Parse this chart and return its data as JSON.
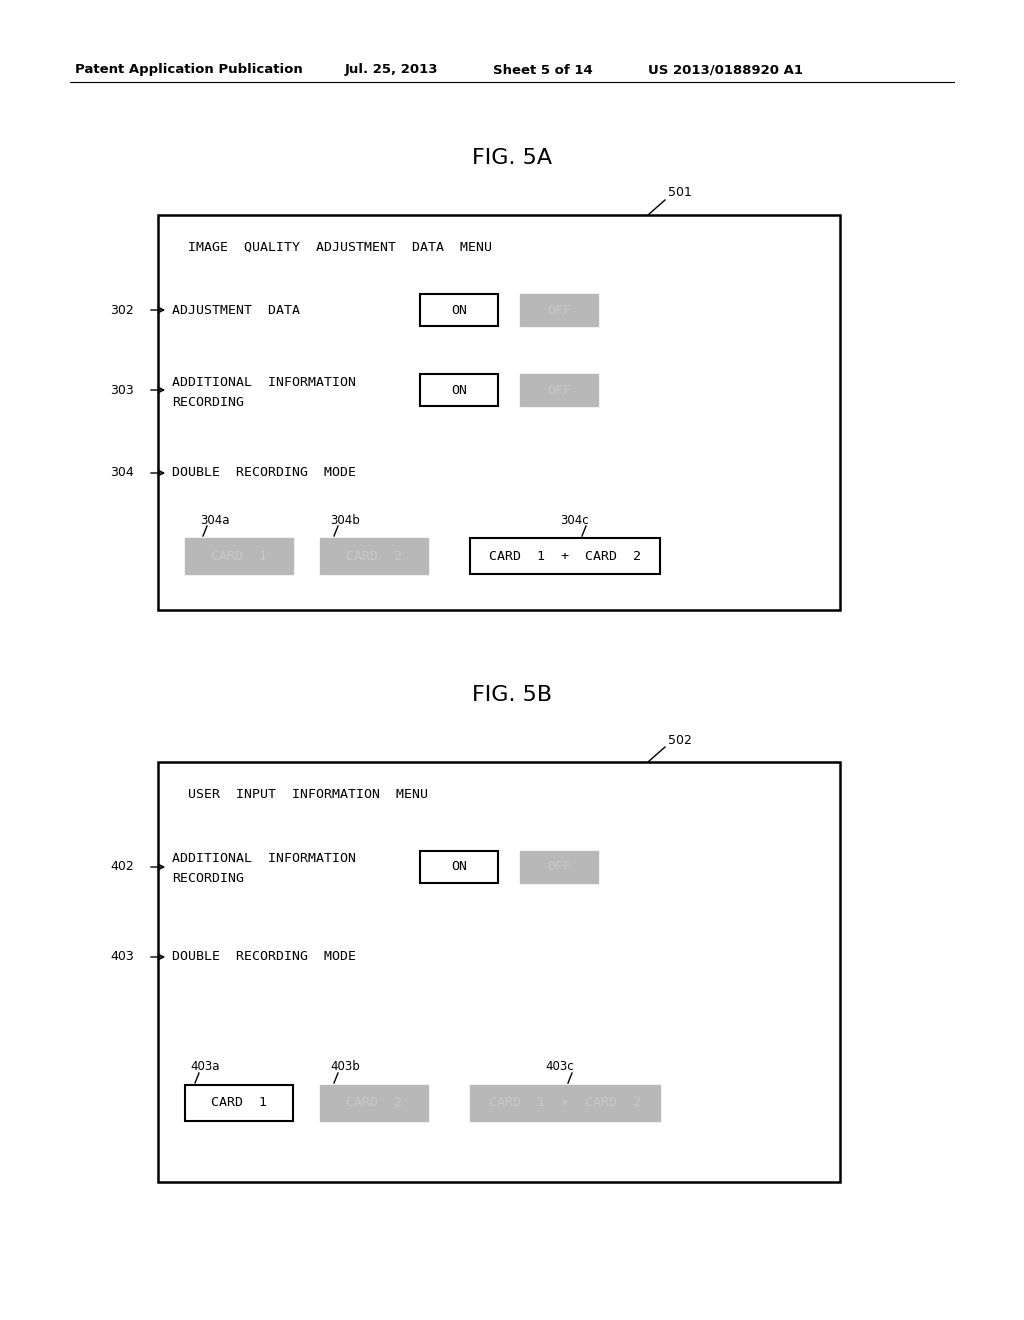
{
  "bg_color": "#ffffff",
  "header_text": "Patent Application Publication",
  "header_date": "Jul. 25, 2013",
  "header_sheet": "Sheet 5 of 14",
  "header_patent": "US 2013/0188920 A1",
  "fig5a_title": "FIG. 5A",
  "fig5b_title": "FIG. 5B",
  "fig5a_label": "501",
  "fig5b_label": "502",
  "gray_color": "#b8b8b8",
  "gray_text_color": "#c8c8c8",
  "white_color": "#ffffff",
  "black_color": "#000000",
  "fig5a": {
    "menu_title": "IMAGE  QUALITY  ADJUSTMENT  DATA  MENU",
    "row1_label": "302",
    "row1_text": "ADJUSTMENT  DATA",
    "row2_label": "303",
    "row2_line1": "ADDITIONAL  INFORMATION",
    "row2_line2": "RECORDING",
    "row3_label": "304",
    "row3_text": "DOUBLE  RECORDING  MODE",
    "card1_label": "304a",
    "card1_text": "CARD  1",
    "card1_style": "gray",
    "card2_label": "304b",
    "card2_text": "CARD  2",
    "card2_style": "gray",
    "card3_label": "304c",
    "card3_text": "CARD  1  +  CARD  2",
    "card3_style": "white"
  },
  "fig5b": {
    "menu_title": "USER  INPUT  INFORMATION  MENU",
    "row1_label": "402",
    "row1_line1": "ADDITIONAL  INFORMATION",
    "row1_line2": "RECORDING",
    "row2_label": "403",
    "row2_text": "DOUBLE  RECORDING  MODE",
    "card1_label": "403a",
    "card1_text": "CARD  1",
    "card1_style": "white",
    "card2_label": "403b",
    "card2_text": "CARD  2",
    "card2_style": "gray",
    "card3_label": "403c",
    "card3_text": "CARD  1  +  CARD  2",
    "card3_style": "gray"
  }
}
